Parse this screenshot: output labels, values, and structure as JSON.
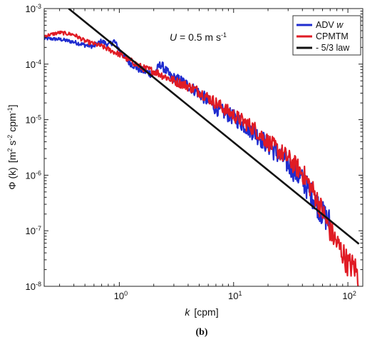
{
  "chart_data": {
    "type": "line",
    "xscale": "log",
    "yscale": "log",
    "xlim": [
      0.22,
      135
    ],
    "ylim": [
      1e-08,
      0.001
    ],
    "grid": false,
    "legend_placement": "top-right",
    "xlabel": {
      "main": "k",
      "unit": "[cpm]"
    },
    "ylabel": {
      "main": "Φ (k)",
      "unit_prefix": "[m",
      "exp1": "2",
      "mid1": " s",
      "exp2": "-2",
      "mid2": " cpm",
      "exp3": "-1",
      "unit_suffix": "]"
    },
    "annotation": {
      "var": "U",
      "text": " = 0.5 m s",
      "exp": "-1"
    },
    "caption": "(b)",
    "x_ticks": [
      {
        "value": 1,
        "base": "10",
        "exp": "0"
      },
      {
        "value": 10,
        "base": "10",
        "exp": "1"
      },
      {
        "value": 100,
        "base": "10",
        "exp": "2"
      }
    ],
    "y_ticks": [
      {
        "value": 0.001,
        "base": "10",
        "exp": "-3"
      },
      {
        "value": 0.0001,
        "base": "10",
        "exp": "-4"
      },
      {
        "value": 1e-05,
        "base": "10",
        "exp": "-5"
      },
      {
        "value": 1e-06,
        "base": "10",
        "exp": "-6"
      },
      {
        "value": 1e-07,
        "base": "10",
        "exp": "-7"
      },
      {
        "value": 1e-08,
        "base": "10",
        "exp": "-8"
      }
    ],
    "series": [
      {
        "name": "ADV w",
        "legend_parts": [
          "ADV ",
          "w"
        ],
        "color": "#1f2ccf",
        "points": [
          [
            0.22,
            0.00029
          ],
          [
            0.3,
            0.00028
          ],
          [
            0.4,
            0.00025
          ],
          [
            0.5,
            0.00022
          ],
          [
            0.6,
            0.00021
          ],
          [
            0.7,
            0.00026
          ],
          [
            0.8,
            0.00022
          ],
          [
            0.9,
            0.00026
          ],
          [
            1.0,
            0.00018
          ],
          [
            1.2,
            0.00011
          ],
          [
            1.5,
            8e-05
          ],
          [
            2.0,
            6.5e-05
          ],
          [
            2.3,
            0.0001
          ],
          [
            2.8,
            6e-05
          ],
          [
            3.5,
            5e-05
          ],
          [
            5,
            3e-05
          ],
          [
            7,
            1.6e-05
          ],
          [
            10,
            1.1e-05
          ],
          [
            15,
            6e-06
          ],
          [
            20,
            3.5e-06
          ],
          [
            30,
            1.6e-06
          ],
          [
            40,
            8e-07
          ],
          [
            50,
            4e-07
          ],
          [
            60,
            2e-07
          ],
          [
            70,
            1.4e-07
          ]
        ]
      },
      {
        "name": "CPMTM",
        "legend_parts": [
          "CPMTM",
          ""
        ],
        "color": "#e01b24",
        "points": [
          [
            0.22,
            0.00032
          ],
          [
            0.3,
            0.00037
          ],
          [
            0.4,
            0.00034
          ],
          [
            0.5,
            0.00026
          ],
          [
            0.7,
            0.00021
          ],
          [
            1.0,
            0.00015
          ],
          [
            1.3,
            0.00011
          ],
          [
            1.6,
            8.5e-05
          ],
          [
            2.0,
            7.5e-05
          ],
          [
            3,
            5e-05
          ],
          [
            4,
            4e-05
          ],
          [
            5,
            3.2e-05
          ],
          [
            7,
            2e-05
          ],
          [
            10,
            1.2e-05
          ],
          [
            15,
            7e-06
          ],
          [
            20,
            4e-06
          ],
          [
            30,
            2e-06
          ],
          [
            40,
            1.1e-06
          ],
          [
            50,
            5e-07
          ],
          [
            60,
            2.2e-07
          ],
          [
            70,
            1e-07
          ],
          [
            80,
            6e-08
          ],
          [
            90,
            4e-08
          ],
          [
            100,
            2.5e-08
          ],
          [
            115,
            2.2e-08
          ],
          [
            125,
            1.3e-08
          ]
        ]
      },
      {
        "name": "- 5/3 law",
        "legend_parts": [
          "- 5/3 law",
          ""
        ],
        "color": "#111111",
        "points": [
          [
            0.36,
            0.001
          ],
          [
            125,
            5.8e-08
          ]
        ]
      }
    ]
  }
}
